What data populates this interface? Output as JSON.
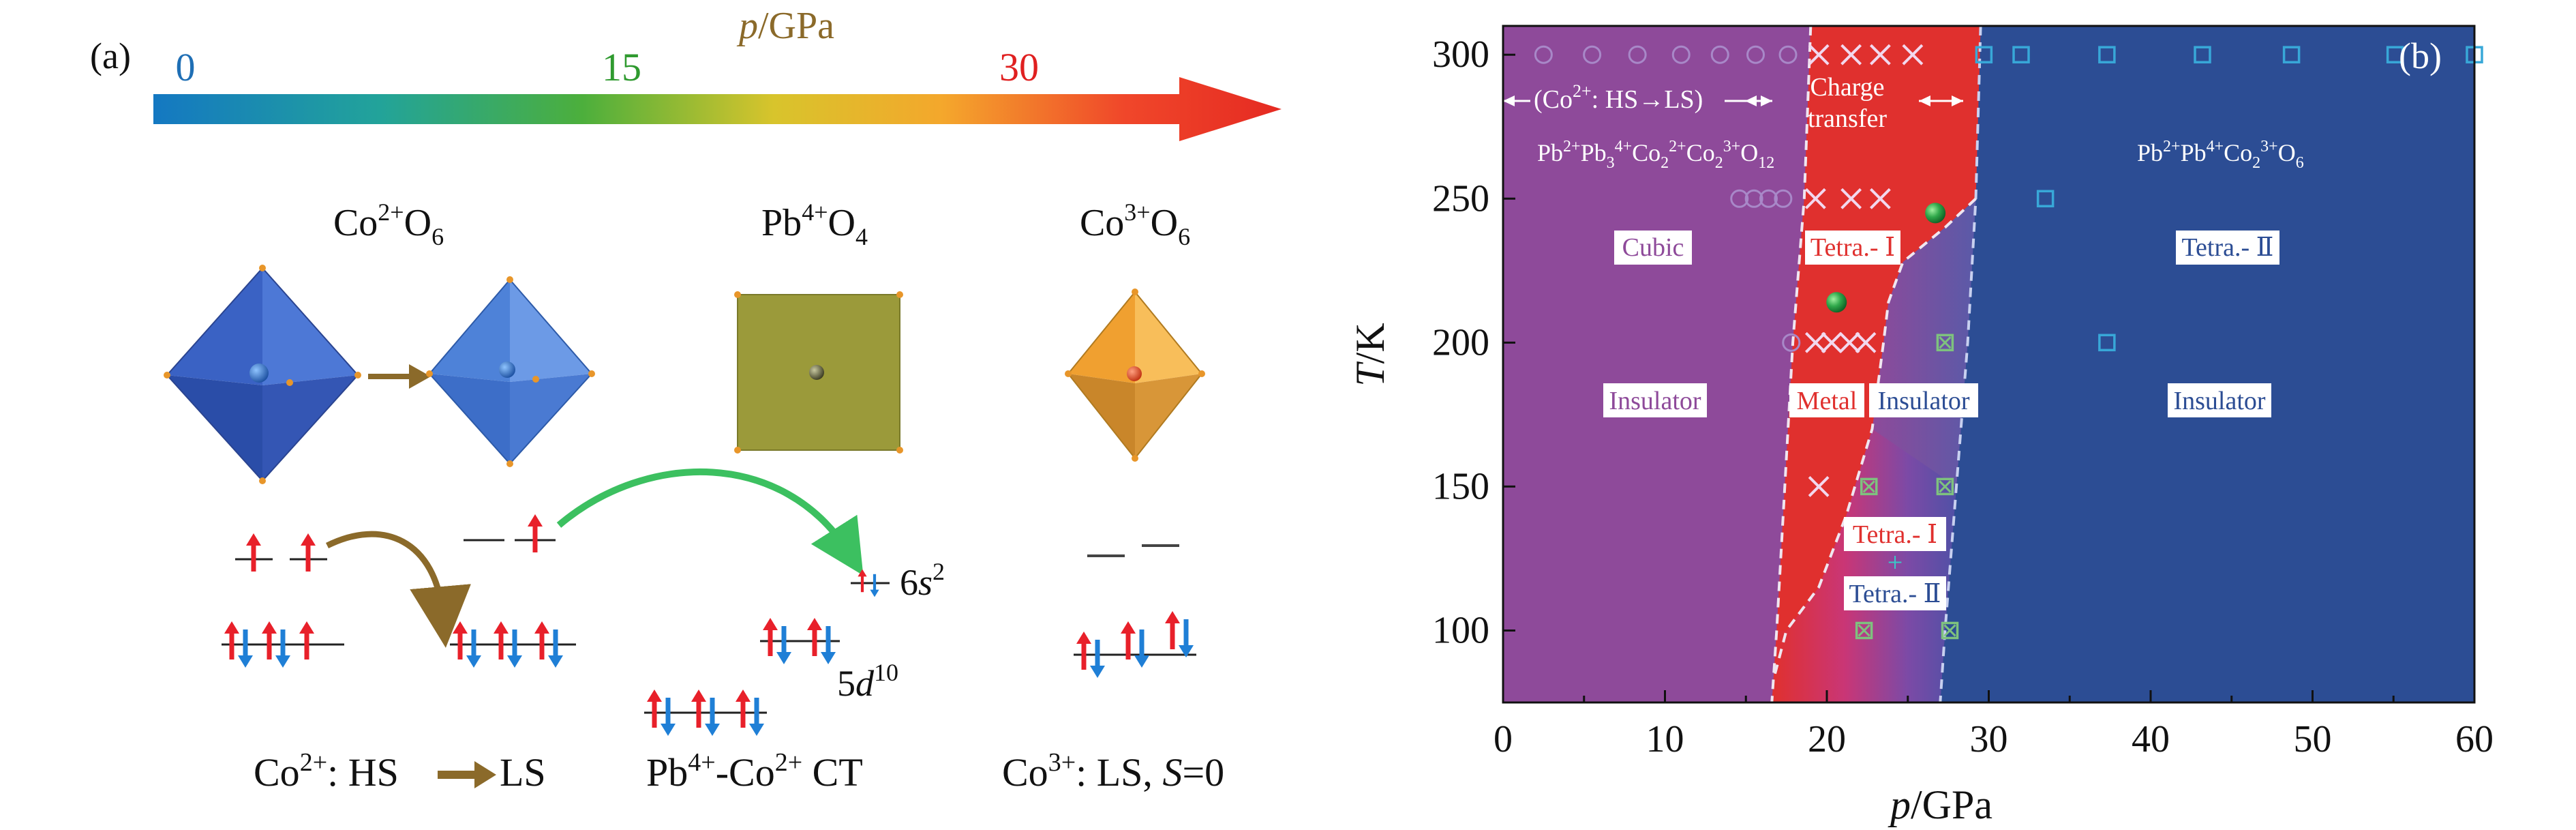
{
  "panel_a": {
    "label": "(a)",
    "pressure_axis": {
      "title_var": "p",
      "title_unit": "/GPa",
      "tick_0": "0",
      "tick_15": "15",
      "tick_30": "30",
      "tick_colors": {
        "t0": "#1f6fb5",
        "t15": "#2f9a2f",
        "t30": "#e02020"
      }
    },
    "polyhedra": {
      "co2": {
        "base": "Co",
        "sup": "2+",
        "mid": "O",
        "sub": "6"
      },
      "pb4": {
        "base": "Pb",
        "sup": "4+",
        "mid": "O",
        "sub": "4"
      },
      "co3": {
        "base": "Co",
        "sup": "3+",
        "mid": "O",
        "sub": "6"
      }
    },
    "orbital_labels": {
      "s6": {
        "num": "6",
        "var": "s",
        "sup": "2"
      },
      "d5": {
        "num": "5",
        "var": "d",
        "sup": "10"
      }
    },
    "captions": {
      "co2": {
        "base": "Co",
        "sup": "2+",
        "text1": ": HS",
        "text2": "LS"
      },
      "pb": {
        "base1": "Pb",
        "sup1": "4+",
        "dash": "-Co",
        "sup2": "2+",
        "tail": " CT"
      },
      "co3": {
        "base": "Co",
        "sup": "3+",
        "text": ": LS, ",
        "var": "S",
        "tail": "=0"
      }
    },
    "colors": {
      "spin_up": "#e8202a",
      "spin_down": "#1f7fd6",
      "octa_blue": "#3a62c4",
      "octa_orange": "#e8962a",
      "square_olive": "#9b9a3a",
      "arrow_brown": "#8b6a2a",
      "arrow_green": "#3cc060"
    }
  },
  "panel_b": {
    "label": "(b)",
    "region_labels": {
      "hs_ls": {
        "open": "(Co",
        "sup": "2+",
        "text": ": HS",
        "arrow": "→",
        "end": "LS)"
      },
      "charge_transfer": {
        "line1": "Charge",
        "line2": "transfer"
      },
      "formula_left": {
        "a": "Pb",
        "a_sup": "2+",
        "b": "Pb",
        "b_sub": "3",
        "b_sup": "4+",
        "c": "Co",
        "c_sub": "2",
        "c_sup": "2+",
        "d": "Co",
        "d_sub": "2",
        "d_sup": "3+",
        "e": "O",
        "e_sub": "12"
      },
      "formula_right": {
        "a": "Pb",
        "a_sup": "2+",
        "b": "Pb",
        "b_sup": "4+",
        "c": "Co",
        "c_sub": "2",
        "c_sup": "3+",
        "d": "O",
        "d_sub": "6"
      },
      "cubic": "Cubic",
      "tetra1_top": "Tetra.- Ⅰ",
      "tetra2": "Tetra.- Ⅱ",
      "insulator_left": "Insulator",
      "metal": "Metal",
      "insulator_mid": "Insulator",
      "insulator_right": "Insulator",
      "mixed_line1": "Tetra.- Ⅰ",
      "mixed_plus": "+",
      "mixed_line2": "Tetra.- Ⅱ"
    },
    "colors": {
      "purple": "#8e4a9a",
      "red": "#e0302e",
      "blue": "#2c4d94",
      "circle": "#a888c8",
      "cross": "#f2d8ee",
      "square": "#38a8d8",
      "green_sq": "#7ec27e"
    }
  },
  "chart_data": {
    "type": "scatter",
    "title": "",
    "xlabel": "p/GPa",
    "ylabel": "T/K",
    "xlim": [
      0,
      60
    ],
    "ylim": [
      75,
      310
    ],
    "xticks": [
      0,
      10,
      20,
      30,
      40,
      50,
      60
    ],
    "yticks": [
      100,
      150,
      200,
      250,
      300
    ],
    "series": [
      {
        "name": "Cubic (circles)",
        "marker": "circle",
        "points": [
          [
            2.5,
            300
          ],
          [
            5.5,
            300
          ],
          [
            8.3,
            300
          ],
          [
            11,
            300
          ],
          [
            13.4,
            300
          ],
          [
            15.6,
            300
          ],
          [
            17.6,
            300
          ],
          [
            14.6,
            250
          ],
          [
            15.5,
            250
          ],
          [
            16.4,
            250
          ],
          [
            17.3,
            250
          ],
          [
            17.8,
            200
          ]
        ]
      },
      {
        "name": "Tetra.-I (crosses)",
        "marker": "cross",
        "points": [
          [
            19.5,
            300
          ],
          [
            21.5,
            300
          ],
          [
            23.3,
            300
          ],
          [
            25.3,
            300
          ],
          [
            19.3,
            250
          ],
          [
            21.5,
            250
          ],
          [
            23.3,
            250
          ],
          [
            19.3,
            200
          ],
          [
            20.3,
            200
          ],
          [
            21.4,
            200
          ],
          [
            22.4,
            200
          ],
          [
            19.5,
            150
          ]
        ]
      },
      {
        "name": "Tetra.-II (squares)",
        "marker": "square",
        "points": [
          [
            29.7,
            300
          ],
          [
            32,
            300
          ],
          [
            37.3,
            300
          ],
          [
            43.2,
            300
          ],
          [
            48.7,
            300
          ],
          [
            55.1,
            300
          ],
          [
            60,
            300
          ],
          [
            33.5,
            250
          ],
          [
            37.3,
            200
          ]
        ]
      },
      {
        "name": "Mixed (boxed crosses)",
        "marker": "boxed-cross",
        "points": [
          [
            27.3,
            200
          ],
          [
            22.6,
            150
          ],
          [
            27.3,
            150
          ],
          [
            22.3,
            100
          ],
          [
            27.6,
            100
          ]
        ]
      },
      {
        "name": "Green spheres",
        "marker": "sphere",
        "points": [
          [
            26.7,
            245
          ],
          [
            20.6,
            214
          ]
        ]
      }
    ]
  }
}
